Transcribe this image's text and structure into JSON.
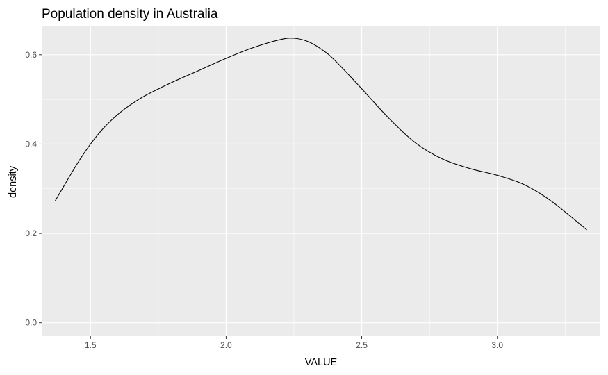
{
  "chart_data": {
    "type": "line",
    "title": "Population density in Australia",
    "xlabel": "VALUE",
    "ylabel": "density",
    "xlim": [
      1.32,
      3.38
    ],
    "ylim": [
      -0.03,
      0.665
    ],
    "x_ticks": [
      1.5,
      2.0,
      2.5,
      3.0
    ],
    "x_tick_labels": [
      "1.5",
      "2.0",
      "2.5",
      "3.0"
    ],
    "y_ticks": [
      0.0,
      0.2,
      0.4,
      0.6
    ],
    "y_tick_labels": [
      "0.0",
      "0.2",
      "0.4",
      "0.6"
    ],
    "grid": true,
    "legend": "none",
    "colors": {
      "panel": "#ebebeb",
      "grid": "#ffffff",
      "line": "#000000",
      "tick": "#333333"
    },
    "series": [
      {
        "x": [
          1.37,
          1.45,
          1.5,
          1.55,
          1.6,
          1.65,
          1.7,
          1.8,
          1.9,
          2.0,
          2.1,
          2.2,
          2.25,
          2.3,
          2.35,
          2.4,
          2.5,
          2.6,
          2.7,
          2.8,
          2.9,
          3.0,
          3.1,
          3.2,
          3.33
        ],
        "values": [
          0.273,
          0.355,
          0.4,
          0.437,
          0.466,
          0.489,
          0.508,
          0.538,
          0.565,
          0.592,
          0.616,
          0.634,
          0.637,
          0.63,
          0.613,
          0.588,
          0.524,
          0.458,
          0.402,
          0.366,
          0.345,
          0.33,
          0.309,
          0.272,
          0.208
        ]
      }
    ]
  }
}
